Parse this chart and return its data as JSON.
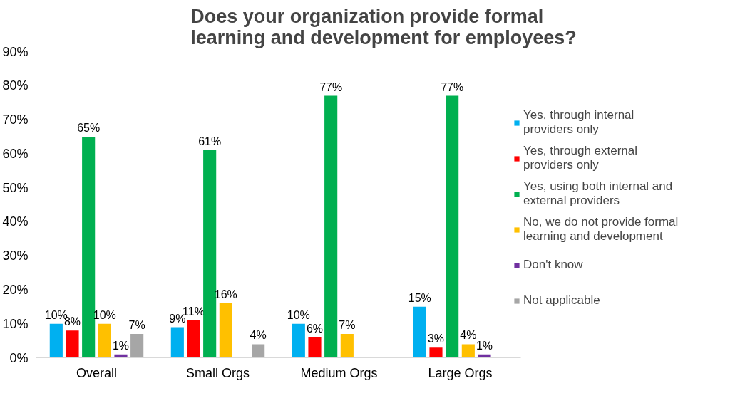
{
  "chart_data": {
    "type": "bar",
    "title": "Does your organization provide formal learning and development for employees?",
    "categories": [
      "Overall",
      "Small Orgs",
      "Medium Orgs",
      "Large Orgs"
    ],
    "series": [
      {
        "name": "Yes, through internal providers only",
        "color": "#00b0f0",
        "values": [
          10,
          9,
          10,
          15
        ],
        "value_labels": [
          "10%",
          "9%",
          "10%",
          "15%"
        ]
      },
      {
        "name": "Yes, through external providers only",
        "color": "#ff0000",
        "values": [
          8,
          11,
          6,
          3
        ],
        "value_labels": [
          "8%",
          "11%",
          "6%",
          "3%"
        ]
      },
      {
        "name": "Yes, using both internal and external providers",
        "color": "#00b050",
        "values": [
          65,
          61,
          77,
          77
        ],
        "value_labels": [
          "65%",
          "61%",
          "77%",
          "77%"
        ]
      },
      {
        "name": "No, we do not provide formal learning and development",
        "color": "#ffc000",
        "values": [
          10,
          16,
          7,
          4
        ],
        "value_labels": [
          "10%",
          "16%",
          "7%",
          "4%"
        ]
      },
      {
        "name": "Don't know",
        "color": "#7030a0",
        "values": [
          1,
          null,
          null,
          1
        ],
        "value_labels": [
          "1%",
          null,
          null,
          "1%"
        ]
      },
      {
        "name": "Not applicable",
        "color": "#a6a6a6",
        "values": [
          7,
          4,
          null,
          null
        ],
        "value_labels": [
          "7%",
          "4%",
          null,
          null
        ]
      }
    ],
    "ylim": [
      0,
      90
    ],
    "yticks": [
      {
        "value": 0,
        "label": "0%"
      },
      {
        "value": 10,
        "label": "10%"
      },
      {
        "value": 20,
        "label": "20%"
      },
      {
        "value": 30,
        "label": "30%"
      },
      {
        "value": 40,
        "label": "40%"
      },
      {
        "value": 50,
        "label": "50%"
      },
      {
        "value": 60,
        "label": "60%"
      },
      {
        "value": 70,
        "label": "70%"
      },
      {
        "value": 80,
        "label": "80%"
      },
      {
        "value": 90,
        "label": "90%"
      }
    ],
    "grid": false,
    "legend": "right"
  }
}
